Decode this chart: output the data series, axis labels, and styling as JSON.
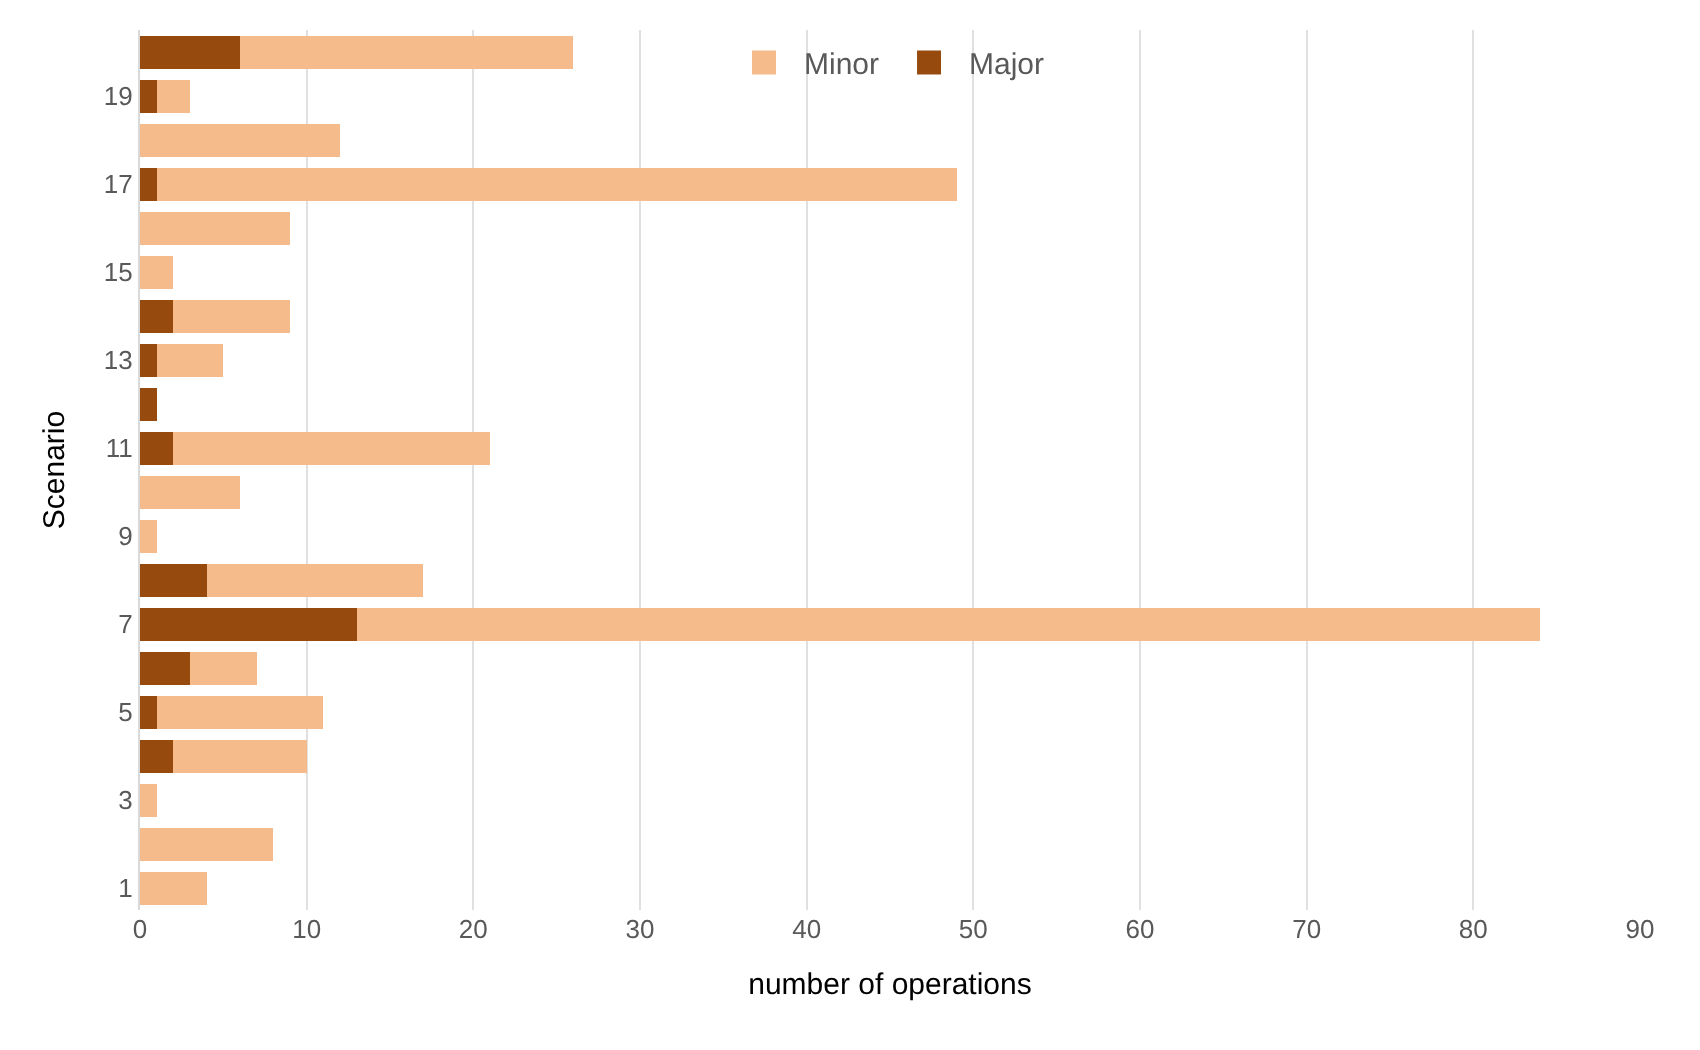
{
  "chart_data": {
    "type": "bar",
    "orientation": "horizontal",
    "stacked": true,
    "xlabel": "number of operations",
    "ylabel": "Scenario",
    "categories": [
      null,
      "19",
      null,
      "17",
      null,
      "15",
      null,
      "13",
      null,
      "11",
      null,
      "9",
      null,
      "7",
      null,
      "5",
      null,
      "3",
      null,
      "1"
    ],
    "series": [
      {
        "name": "Major",
        "color": "#964a0e",
        "values": [
          6,
          1,
          0,
          1,
          0,
          0,
          2,
          1,
          1,
          2,
          0,
          0,
          4,
          13,
          3,
          1,
          2,
          0,
          0,
          0
        ]
      },
      {
        "name": "Minor",
        "color": "#f6bb8b",
        "values": [
          20,
          2,
          12,
          48,
          9,
          2,
          7,
          4,
          0,
          19,
          6,
          1,
          13,
          71,
          4,
          10,
          8,
          1,
          8,
          4
        ]
      }
    ],
    "xlim": [
      0,
      90
    ],
    "xticks": [
      0,
      10,
      20,
      30,
      40,
      50,
      60,
      70,
      80,
      90
    ],
    "grid": "x",
    "legend": "top"
  }
}
